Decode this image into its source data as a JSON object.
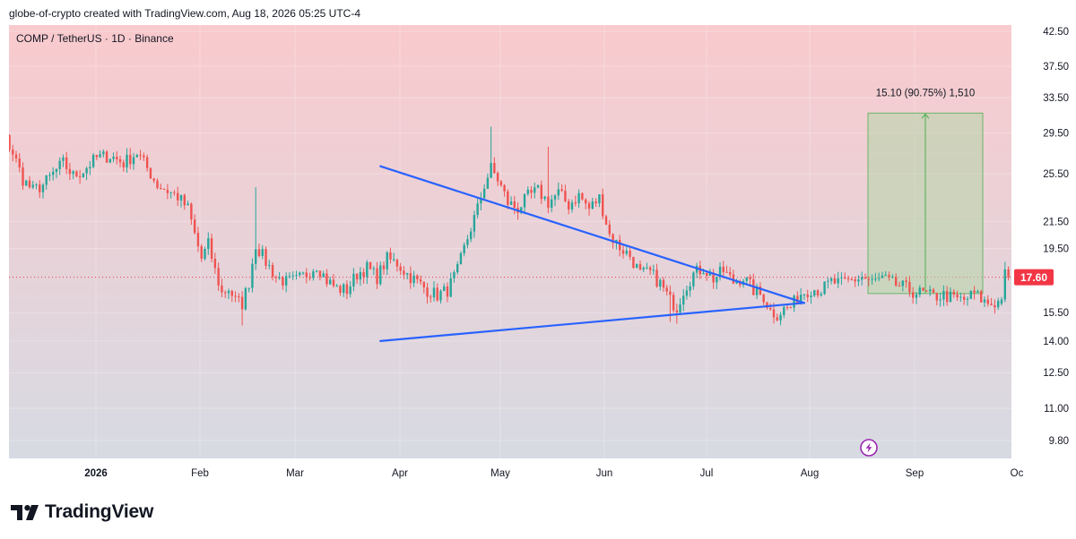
{
  "header": {
    "attribution": "globe-of-crypto created with TradingView.com, Aug 18, 2026 05:25 UTC-4"
  },
  "footer": {
    "brand": "TradingView",
    "logo_icon": "tradingview-logo-icon"
  },
  "colors": {
    "up": "#26a69a",
    "down": "#ef5350",
    "trendline": "#2962ff",
    "measure_fill": "#b5d6a7",
    "measure_line": "#4caf50",
    "price_label_bg": "#f23645",
    "bg_top": "#f9cacd",
    "bg_bottom": "#d7dae3",
    "lightning_icon": "#9c27b0"
  },
  "chart_data": {
    "type": "candlestick",
    "title": "COMP / TetherUS · 1D · Binance",
    "x_tick_labels": [
      "2026",
      "Feb",
      "Mar",
      "Apr",
      "May",
      "Jun",
      "Jul",
      "Aug",
      "Sep",
      "Oc"
    ],
    "y_tick_labels": [
      "42.50",
      "37.50",
      "33.50",
      "29.50",
      "25.50",
      "21.50",
      "19.50",
      "15.50",
      "14.00",
      "12.50",
      "11.00",
      "9.80"
    ],
    "y_scale": "log",
    "current_price": "17.60",
    "measure_label": "15.10 (90.75%) 1,510",
    "measure_range": {
      "from_price": 16.6,
      "to_price": 31.7,
      "start_date": "2026-08-18",
      "end_date": "2026-09-02"
    },
    "trendlines": [
      {
        "from": {
          "date": "2026-04-15",
          "price": 26.2
        },
        "to": {
          "date": "2026-08-19",
          "price": 16.05
        }
      },
      {
        "from": {
          "date": "2026-04-15",
          "price": 14.0
        },
        "to": {
          "date": "2026-08-19",
          "price": 16.05
        }
      }
    ],
    "start_date": "2025-12-13",
    "anchors": [
      [
        "2025-12-13",
        31.2
      ],
      [
        "2025-12-16",
        31.8
      ],
      [
        "2025-12-19",
        31.2
      ],
      [
        "2025-12-21",
        31.4
      ],
      [
        "2025-12-24",
        29.5
      ],
      [
        "2025-12-27",
        27.5
      ],
      [
        "2025-12-30",
        25.0
      ],
      [
        "2026-01-02",
        24.0
      ],
      [
        "2026-01-05",
        24.5
      ],
      [
        "2026-01-08",
        25.5
      ],
      [
        "2026-01-11",
        26.5
      ],
      [
        "2026-01-14",
        25.3
      ],
      [
        "2026-01-17",
        25.8
      ],
      [
        "2026-01-21",
        27.0
      ],
      [
        "2026-01-25",
        27.2
      ],
      [
        "2026-01-29",
        26.5
      ],
      [
        "2026-02-02",
        27.5
      ],
      [
        "2026-02-05",
        26.0
      ],
      [
        "2026-02-08",
        24.5
      ],
      [
        "2026-02-11",
        24.0
      ],
      [
        "2026-02-14",
        23.5
      ],
      [
        "2026-02-17",
        22.5
      ],
      [
        "2026-02-19",
        20.5
      ],
      [
        "2026-02-21",
        18.8
      ],
      [
        "2026-02-23",
        19.8
      ],
      [
        "2026-02-25",
        18.0
      ],
      [
        "2026-02-27",
        16.6
      ],
      [
        "2026-03-01",
        16.9
      ],
      [
        "2026-03-03",
        16.2
      ],
      [
        "2026-03-05",
        16.0
      ],
      [
        "2026-03-07",
        17.3
      ],
      [
        "2026-03-09",
        19.8
      ],
      [
        "2026-03-12",
        18.6
      ],
      [
        "2026-03-15",
        17.6
      ],
      [
        "2026-03-18",
        17.3
      ],
      [
        "2026-03-21",
        17.4
      ],
      [
        "2026-03-24",
        17.8
      ],
      [
        "2026-03-27",
        18.4
      ],
      [
        "2026-03-30",
        17.4
      ],
      [
        "2026-04-02",
        16.9
      ],
      [
        "2026-04-05",
        16.8
      ],
      [
        "2026-04-08",
        17.8
      ],
      [
        "2026-04-11",
        18.2
      ],
      [
        "2026-04-14",
        17.6
      ],
      [
        "2026-04-17",
        18.8
      ],
      [
        "2026-04-20",
        18.5
      ],
      [
        "2026-04-23",
        17.8
      ],
      [
        "2026-04-26",
        17.3
      ],
      [
        "2026-04-29",
        16.8
      ],
      [
        "2026-05-02",
        16.5
      ],
      [
        "2026-05-05",
        16.8
      ],
      [
        "2026-05-08",
        18.0
      ],
      [
        "2026-05-10",
        19.5
      ],
      [
        "2026-05-12",
        21.0
      ],
      [
        "2026-05-14",
        22.5
      ],
      [
        "2026-05-16",
        24.5
      ],
      [
        "2026-05-18",
        26.0
      ],
      [
        "2026-05-20",
        25.0
      ],
      [
        "2026-05-23",
        23.0
      ],
      [
        "2026-05-26",
        22.5
      ],
      [
        "2026-05-29",
        23.5
      ],
      [
        "2026-06-01",
        24.0
      ],
      [
        "2026-06-04",
        23.0
      ],
      [
        "2026-06-07",
        23.8
      ],
      [
        "2026-06-10",
        22.8
      ],
      [
        "2026-06-13",
        23.6
      ],
      [
        "2026-06-16",
        22.5
      ],
      [
        "2026-06-19",
        23.4
      ],
      [
        "2026-06-22",
        20.5
      ],
      [
        "2026-06-25",
        19.6
      ],
      [
        "2026-06-28",
        19.0
      ],
      [
        "2026-07-01",
        17.8
      ],
      [
        "2026-07-04",
        17.9
      ],
      [
        "2026-07-07",
        17.2
      ],
      [
        "2026-07-10",
        16.2
      ],
      [
        "2026-07-12",
        15.8
      ],
      [
        "2026-07-14",
        16.8
      ],
      [
        "2026-07-17",
        17.8
      ],
      [
        "2026-07-20",
        18.2
      ],
      [
        "2026-07-23",
        17.5
      ],
      [
        "2026-07-26",
        18.0
      ],
      [
        "2026-07-29",
        17.3
      ],
      [
        "2026-08-01",
        17.6
      ],
      [
        "2026-08-04",
        16.8
      ],
      [
        "2026-08-07",
        16.4
      ],
      [
        "2026-08-09",
        15.6
      ],
      [
        "2026-08-11",
        15.4
      ],
      [
        "2026-08-13",
        15.7
      ],
      [
        "2026-08-15",
        15.8
      ],
      [
        "2026-08-18",
        16.6
      ],
      [
        "2026-08-21",
        16.9
      ],
      [
        "2026-08-24",
        16.8
      ],
      [
        "2026-08-27",
        17.3
      ],
      [
        "2026-08-30",
        17.2
      ],
      [
        "2026-09-02",
        17.4
      ],
      [
        "2026-09-05",
        17.6
      ],
      [
        "2026-09-08",
        17.3
      ],
      [
        "2026-09-11",
        17.5
      ],
      [
        "2026-09-14",
        17.2
      ],
      [
        "2026-09-17",
        17.0
      ],
      [
        "2026-09-20",
        16.7
      ],
      [
        "2026-09-23",
        16.6
      ],
      [
        "2026-09-26",
        16.4
      ],
      [
        "2026-09-29",
        16.5
      ],
      [
        "2026-10-02",
        16.3
      ],
      [
        "2026-10-05",
        16.2
      ],
      [
        "2026-10-08",
        16.6
      ],
      [
        "2026-10-11",
        16.1
      ],
      [
        "2026-10-13",
        16.0
      ],
      [
        "2026-10-15",
        16.1
      ]
    ],
    "final_candles": [
      {
        "date": "2026-10-16",
        "open": 16.0,
        "high": 16.4,
        "low": 15.9,
        "close": 16.25
      },
      {
        "date": "2026-10-17",
        "open": 16.25,
        "high": 18.6,
        "low": 16.1,
        "close": 18.1
      },
      {
        "date": "2026-10-18",
        "open": 18.1,
        "high": 18.3,
        "low": 17.4,
        "close": 17.6
      }
    ]
  }
}
